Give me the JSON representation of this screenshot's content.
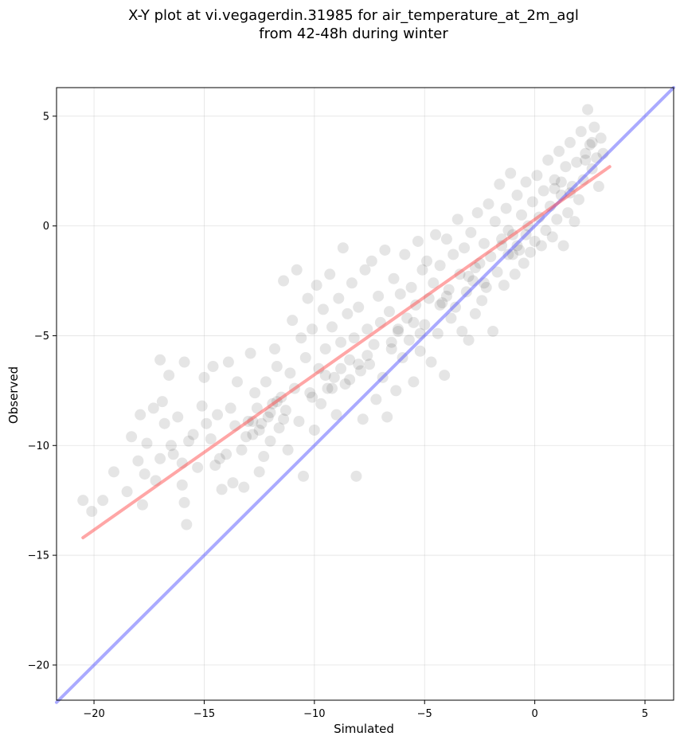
{
  "chart_data": {
    "type": "scatter",
    "title_lines": [
      "X-Y plot at vi.vegagerdin.31985 for air_temperature_at_2m_agl",
      "from 42-48h during winter"
    ],
    "xlabel": "Simulated",
    "ylabel": "Observed",
    "xlim": [
      -21.7,
      6.3
    ],
    "ylim": [
      -21.6,
      6.3
    ],
    "xticks": [
      -20,
      -15,
      -10,
      -5,
      0,
      5
    ],
    "yticks": [
      -20,
      -15,
      -10,
      -5,
      0,
      5
    ],
    "xtick_labels": [
      "−20",
      "−15",
      "−10",
      "−5",
      "0",
      "5"
    ],
    "ytick_labels": [
      "−20",
      "−15",
      "−10",
      "−5",
      "0",
      "5"
    ],
    "grid": true,
    "marker_color": "#000000",
    "marker_alpha": 0.1,
    "points": [
      [
        -20.5,
        -12.5
      ],
      [
        -20.1,
        -13.0
      ],
      [
        -19.6,
        -12.5
      ],
      [
        -19.1,
        -11.2
      ],
      [
        -18.5,
        -12.1
      ],
      [
        -18.3,
        -9.6
      ],
      [
        -18.0,
        -10.7
      ],
      [
        -17.9,
        -8.6
      ],
      [
        -17.8,
        -12.7
      ],
      [
        -17.7,
        -11.3
      ],
      [
        -17.6,
        -9.9
      ],
      [
        -17.3,
        -8.3
      ],
      [
        -17.2,
        -11.6
      ],
      [
        -17.0,
        -6.1
      ],
      [
        -17.0,
        -10.6
      ],
      [
        -16.9,
        -8.0
      ],
      [
        -16.8,
        -9.0
      ],
      [
        -16.6,
        -6.8
      ],
      [
        -16.5,
        -10.0
      ],
      [
        -16.4,
        -10.4
      ],
      [
        -16.2,
        -8.7
      ],
      [
        -16.0,
        -11.8
      ],
      [
        -15.9,
        -6.2
      ],
      [
        -15.9,
        -12.6
      ],
      [
        -15.8,
        -13.6
      ],
      [
        -15.7,
        -9.8
      ],
      [
        -15.5,
        -9.5
      ],
      [
        -15.3,
        -11.0
      ],
      [
        -15.1,
        -8.2
      ],
      [
        -15.0,
        -6.9
      ],
      [
        -14.9,
        -9.0
      ],
      [
        -14.7,
        -9.7
      ],
      [
        -14.6,
        -6.4
      ],
      [
        -14.5,
        -10.9
      ],
      [
        -14.4,
        -8.6
      ],
      [
        -14.2,
        -12.0
      ],
      [
        -14.0,
        -10.4
      ],
      [
        -13.9,
        -6.2
      ],
      [
        -13.8,
        -8.3
      ],
      [
        -13.7,
        -11.7
      ],
      [
        -13.6,
        -9.1
      ],
      [
        -13.5,
        -7.1
      ],
      [
        -13.3,
        -10.2
      ],
      [
        -13.2,
        -11.9
      ],
      [
        -13.0,
        -8.9
      ],
      [
        -12.9,
        -5.8
      ],
      [
        -12.8,
        -9.5
      ],
      [
        -12.7,
        -7.6
      ],
      [
        -12.6,
        -8.3
      ],
      [
        -12.5,
        -11.2
      ],
      [
        -12.4,
        -9.0
      ],
      [
        -12.3,
        -10.5
      ],
      [
        -12.2,
        -7.1
      ],
      [
        -12.1,
        -8.7
      ],
      [
        -12.0,
        -9.8
      ],
      [
        -11.9,
        -8.1
      ],
      [
        -11.8,
        -5.6
      ],
      [
        -11.7,
        -6.4
      ],
      [
        -11.6,
        -9.2
      ],
      [
        -11.5,
        -7.8
      ],
      [
        -11.4,
        -2.5
      ],
      [
        -11.3,
        -8.4
      ],
      [
        -11.2,
        -10.2
      ],
      [
        -11.1,
        -6.7
      ],
      [
        -11.0,
        -4.3
      ],
      [
        -10.9,
        -7.4
      ],
      [
        -10.8,
        -2.0
      ],
      [
        -10.7,
        -8.9
      ],
      [
        -10.6,
        -5.1
      ],
      [
        -10.5,
        -11.4
      ],
      [
        -10.4,
        -6.0
      ],
      [
        -10.3,
        -3.3
      ],
      [
        -10.2,
        -7.6
      ],
      [
        -10.1,
        -4.7
      ],
      [
        -10.0,
        -9.3
      ],
      [
        -9.9,
        -2.7
      ],
      [
        -9.8,
        -6.5
      ],
      [
        -9.7,
        -8.1
      ],
      [
        -9.6,
        -3.8
      ],
      [
        -9.5,
        -5.6
      ],
      [
        -9.4,
        -7.4
      ],
      [
        -9.3,
        -2.2
      ],
      [
        -9.2,
        -4.6
      ],
      [
        -9.1,
        -6.9
      ],
      [
        -9.0,
        -8.6
      ],
      [
        -8.9,
        -3.3
      ],
      [
        -8.8,
        -5.3
      ],
      [
        -8.7,
        -1.0
      ],
      [
        -8.6,
        -7.2
      ],
      [
        -8.5,
        -4.0
      ],
      [
        -8.4,
        -6.1
      ],
      [
        -8.3,
        -2.6
      ],
      [
        -8.2,
        -5.1
      ],
      [
        -8.1,
        -11.4
      ],
      [
        -8.0,
        -3.7
      ],
      [
        -7.9,
        -6.6
      ],
      [
        -7.8,
        -8.8
      ],
      [
        -7.7,
        -2.0
      ],
      [
        -7.6,
        -4.7
      ],
      [
        -7.5,
        -6.3
      ],
      [
        -7.4,
        -1.6
      ],
      [
        -7.3,
        -5.4
      ],
      [
        -7.2,
        -7.9
      ],
      [
        -7.1,
        -3.2
      ],
      [
        -7.0,
        -4.4
      ],
      [
        -6.9,
        -6.9
      ],
      [
        -6.8,
        -1.1
      ],
      [
        -6.7,
        -8.7
      ],
      [
        -6.6,
        -3.9
      ],
      [
        -6.5,
        -5.6
      ],
      [
        -6.4,
        -2.4
      ],
      [
        -6.3,
        -7.5
      ],
      [
        -6.2,
        -4.8
      ],
      [
        -6.1,
        -3.1
      ],
      [
        -6.0,
        -6.0
      ],
      [
        -5.9,
        -1.3
      ],
      [
        -5.8,
        -4.2
      ],
      [
        -5.7,
        -5.2
      ],
      [
        -5.6,
        -2.8
      ],
      [
        -5.5,
        -7.1
      ],
      [
        -5.4,
        -3.6
      ],
      [
        -5.3,
        -0.7
      ],
      [
        -5.2,
        -5.7
      ],
      [
        -5.1,
        -2.0
      ],
      [
        -5.0,
        -4.5
      ],
      [
        -4.9,
        -1.6
      ],
      [
        -4.8,
        -3.3
      ],
      [
        -4.7,
        -6.2
      ],
      [
        -4.6,
        -2.6
      ],
      [
        -4.5,
        -0.4
      ],
      [
        -4.4,
        -4.9
      ],
      [
        -4.3,
        -1.8
      ],
      [
        -4.2,
        -3.5
      ],
      [
        -4.1,
        -6.8
      ],
      [
        -4.0,
        -0.6
      ],
      [
        -3.9,
        -2.9
      ],
      [
        -3.8,
        -4.2
      ],
      [
        -3.7,
        -1.3
      ],
      [
        -3.6,
        -3.7
      ],
      [
        -3.5,
        0.3
      ],
      [
        -3.4,
        -2.2
      ],
      [
        -3.3,
        -4.8
      ],
      [
        -3.2,
        -1.0
      ],
      [
        -3.1,
        -3.0
      ],
      [
        -3.0,
        -5.2
      ],
      [
        -2.9,
        -0.3
      ],
      [
        -2.8,
        -2.5
      ],
      [
        -2.7,
        -4.0
      ],
      [
        -2.6,
        0.6
      ],
      [
        -2.5,
        -1.7
      ],
      [
        -2.4,
        -3.4
      ],
      [
        -2.3,
        -0.8
      ],
      [
        -2.2,
        -2.8
      ],
      [
        -2.1,
        1.0
      ],
      [
        -2.0,
        -1.4
      ],
      [
        -1.9,
        -4.8
      ],
      [
        -1.8,
        0.2
      ],
      [
        -1.7,
        -2.1
      ],
      [
        -1.6,
        1.9
      ],
      [
        -1.5,
        -0.9
      ],
      [
        -1.4,
        -2.7
      ],
      [
        -1.3,
        0.8
      ],
      [
        -1.2,
        -1.3
      ],
      [
        -1.1,
        2.4
      ],
      [
        -1.0,
        -0.4
      ],
      [
        -0.9,
        -2.2
      ],
      [
        -0.8,
        1.4
      ],
      [
        -0.7,
        -1.1
      ],
      [
        -0.6,
        0.5
      ],
      [
        -0.5,
        -1.7
      ],
      [
        -0.4,
        2.0
      ],
      [
        -0.3,
        0.0
      ],
      [
        -0.2,
        -1.2
      ],
      [
        -0.1,
        1.1
      ],
      [
        0.0,
        -0.7
      ],
      [
        0.1,
        2.3
      ],
      [
        0.2,
        0.4
      ],
      [
        0.3,
        -0.9
      ],
      [
        0.4,
        1.6
      ],
      [
        0.5,
        -0.2
      ],
      [
        0.6,
        3.0
      ],
      [
        0.7,
        0.9
      ],
      [
        0.8,
        -0.5
      ],
      [
        0.9,
        2.1
      ],
      [
        1.0,
        0.3
      ],
      [
        1.1,
        3.4
      ],
      [
        1.2,
        1.4
      ],
      [
        1.3,
        -0.9
      ],
      [
        1.4,
        2.7
      ],
      [
        1.5,
        0.6
      ],
      [
        1.6,
        3.8
      ],
      [
        1.7,
        1.8
      ],
      [
        1.8,
        0.2
      ],
      [
        1.9,
        2.9
      ],
      [
        2.0,
        1.2
      ],
      [
        2.1,
        4.3
      ],
      [
        2.2,
        2.1
      ],
      [
        2.3,
        3.3
      ],
      [
        2.4,
        5.3
      ],
      [
        2.5,
        3.7
      ],
      [
        2.6,
        2.6
      ],
      [
        2.7,
        4.5
      ],
      [
        2.8,
        3.1
      ],
      [
        2.9,
        1.8
      ],
      [
        3.0,
        4.0
      ],
      [
        3.1,
        3.3
      ],
      [
        -8.8,
        -6.5
      ],
      [
        -8.4,
        -7.0
      ],
      [
        -8.0,
        -6.3
      ],
      [
        -7.6,
        -5.9
      ],
      [
        -12.0,
        -8.5
      ],
      [
        -11.7,
        -8.0
      ],
      [
        -11.4,
        -8.8
      ],
      [
        -12.5,
        -9.3
      ],
      [
        -1.5,
        -0.6
      ],
      [
        -1.2,
        -0.2
      ],
      [
        -0.8,
        -0.9
      ],
      [
        -0.4,
        -0.4
      ],
      [
        -1.0,
        -1.3
      ],
      [
        0.9,
        1.7
      ],
      [
        1.2,
        2.0
      ],
      [
        1.6,
        1.5
      ],
      [
        2.3,
        3.0
      ],
      [
        2.6,
        3.8
      ],
      [
        -3.0,
        -2.3
      ],
      [
        -2.7,
        -1.9
      ],
      [
        -2.3,
        -2.6
      ],
      [
        -4.3,
        -3.6
      ],
      [
        -4.0,
        -3.2
      ],
      [
        -5.5,
        -4.4
      ],
      [
        -5.2,
        -4.9
      ],
      [
        -6.5,
        -5.3
      ],
      [
        -6.2,
        -4.7
      ],
      [
        -9.5,
        -6.8
      ],
      [
        -9.2,
        -7.4
      ],
      [
        -10.1,
        -7.8
      ],
      [
        -13.1,
        -9.6
      ],
      [
        -12.8,
        -8.9
      ],
      [
        -14.3,
        -10.6
      ],
      [
        -16.0,
        -10.8
      ]
    ],
    "fit_line": {
      "color": "#ff4d4d",
      "alpha": 0.5,
      "x": [
        -20.5,
        3.4
      ],
      "y": [
        -14.2,
        2.7
      ]
    },
    "identity_line": {
      "color": "#5555ff",
      "alpha": 0.5,
      "x": [
        -21.7,
        6.3
      ],
      "y": [
        -21.7,
        6.3
      ]
    }
  }
}
